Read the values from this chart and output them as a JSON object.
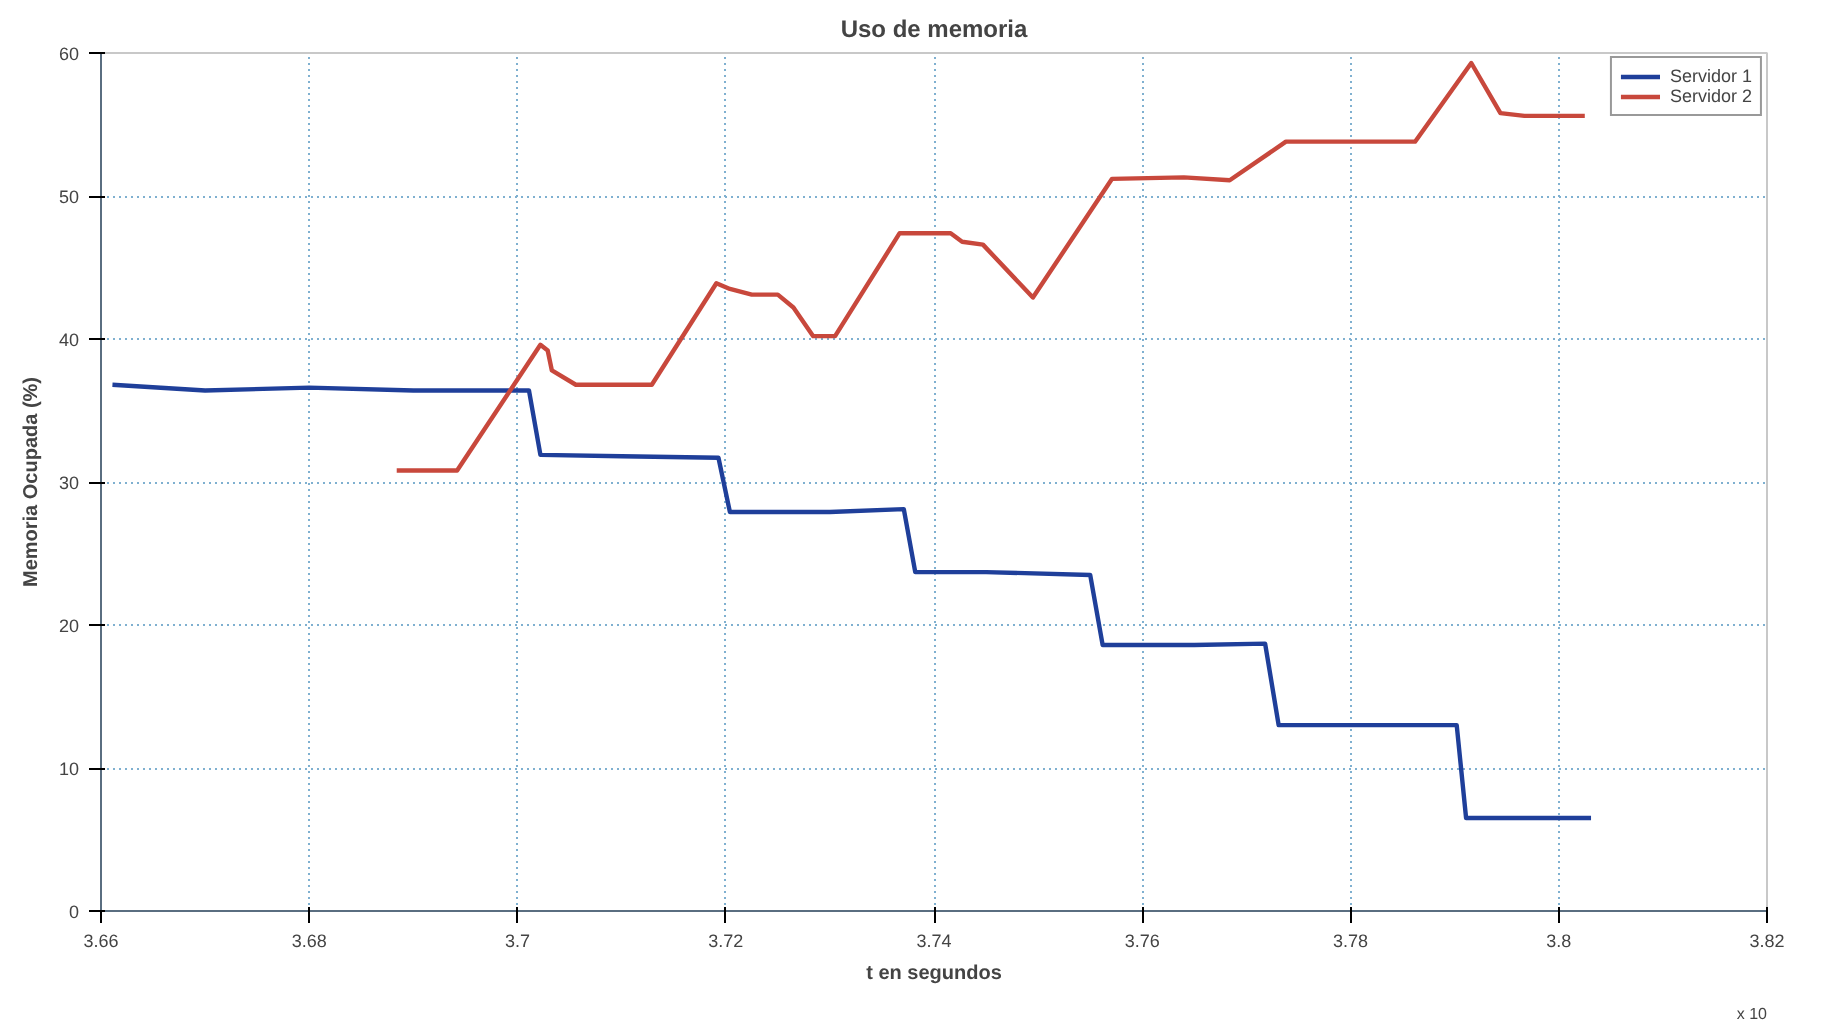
{
  "chart_data": {
    "type": "line",
    "title": "Uso de memoria",
    "xlabel": "t en segundos",
    "ylabel": "Memoria Ocupada (%)",
    "xlim": [
      3.66,
      3.82
    ],
    "xticks": [
      3.66,
      3.68,
      {
        "value": 3.7,
        "label": "3.7"
      },
      3.72,
      3.74,
      3.76,
      3.78,
      {
        "value": 3.8,
        "label": "3.8"
      },
      3.82
    ],
    "ylim": [
      0,
      60
    ],
    "yticks": [
      0,
      10,
      20,
      30,
      40,
      50,
      60
    ],
    "grid": true,
    "legend": "top right",
    "line_style": "solid",
    "marker": "none",
    "annotations": [
      "x 10"
    ],
    "series": [
      {
        "name": "Servidor 1",
        "color": "#1f3f9a",
        "x": [
          3.6611,
          3.67,
          3.68,
          3.69,
          3.7,
          3.7011,
          3.7022,
          3.71,
          3.7193,
          3.7204,
          3.73,
          3.7371,
          3.7382,
          3.745,
          3.755,
          3.7562,
          3.765,
          3.7718,
          3.7731,
          3.782,
          3.7902,
          3.7911,
          3.796,
          3.8031
        ],
        "values": [
          36.8,
          36.4,
          36.6,
          36.4,
          36.4,
          36.4,
          31.9,
          31.8,
          31.7,
          27.9,
          27.9,
          28.1,
          23.7,
          23.7,
          23.5,
          18.6,
          18.6,
          18.7,
          13.0,
          13.0,
          13.0,
          6.5,
          6.5,
          6.5
        ]
      },
      {
        "name": "Servidor 2",
        "color": "#c8483c",
        "x": [
          3.6884,
          3.6942,
          3.7022,
          3.7029,
          3.7033,
          3.7056,
          3.7129,
          3.7191,
          3.7204,
          3.7225,
          3.725,
          3.7265,
          3.7284,
          3.7305,
          3.7367,
          3.7416,
          3.7427,
          3.7447,
          3.7495,
          3.7571,
          3.764,
          3.7684,
          3.7738,
          3.7862,
          3.7916,
          3.7944,
          3.7967,
          3.8025
        ],
        "values": [
          30.8,
          30.8,
          39.6,
          39.2,
          37.8,
          36.8,
          36.8,
          43.9,
          43.5,
          43.1,
          43.1,
          42.2,
          40.2,
          40.2,
          47.4,
          47.4,
          46.8,
          46.6,
          42.9,
          51.2,
          51.3,
          51.1,
          53.8,
          53.8,
          59.3,
          55.8,
          55.6,
          55.6
        ]
      }
    ]
  }
}
